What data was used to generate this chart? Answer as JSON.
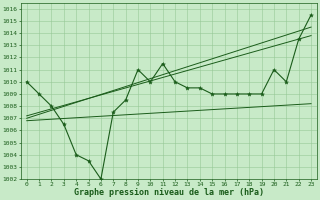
{
  "xlabel": "Graphe pression niveau de la mer (hPa)",
  "ylim": [
    1002,
    1016.5
  ],
  "xlim": [
    -0.5,
    23.5
  ],
  "yticks": [
    1002,
    1003,
    1004,
    1005,
    1006,
    1007,
    1008,
    1009,
    1010,
    1011,
    1012,
    1013,
    1014,
    1015,
    1016
  ],
  "xticks": [
    0,
    1,
    2,
    3,
    4,
    5,
    6,
    7,
    8,
    9,
    10,
    11,
    12,
    13,
    14,
    15,
    16,
    17,
    18,
    19,
    20,
    21,
    22,
    23
  ],
  "x": [
    0,
    1,
    2,
    3,
    4,
    5,
    6,
    7,
    8,
    9,
    10,
    11,
    12,
    13,
    14,
    15,
    16,
    17,
    18,
    19,
    20,
    21,
    22,
    23
  ],
  "y_main": [
    1010,
    1009,
    1008,
    1006.5,
    1004,
    1003.5,
    1002,
    1007.5,
    1008.5,
    1011,
    1010,
    1011.5,
    1010,
    1009.5,
    1009.5,
    1009,
    1009,
    1009,
    1009,
    1009,
    1011,
    1010,
    1013.5,
    1015.5
  ],
  "trend1_x": [
    0,
    23
  ],
  "trend1_y": [
    1007.0,
    1014.5
  ],
  "trend2_x": [
    0,
    23
  ],
  "trend2_y": [
    1006.8,
    1008.2
  ],
  "trend3_x": [
    0,
    23
  ],
  "trend3_y": [
    1007.2,
    1013.8
  ],
  "line_color": "#1a5c1a",
  "bg_color": "#c8eac8",
  "grid_color": "#96c896",
  "label_color": "#1a5c1a",
  "tick_fontsize": 4.5,
  "xlabel_fontsize": 6.0,
  "monospace_font": "monospace"
}
